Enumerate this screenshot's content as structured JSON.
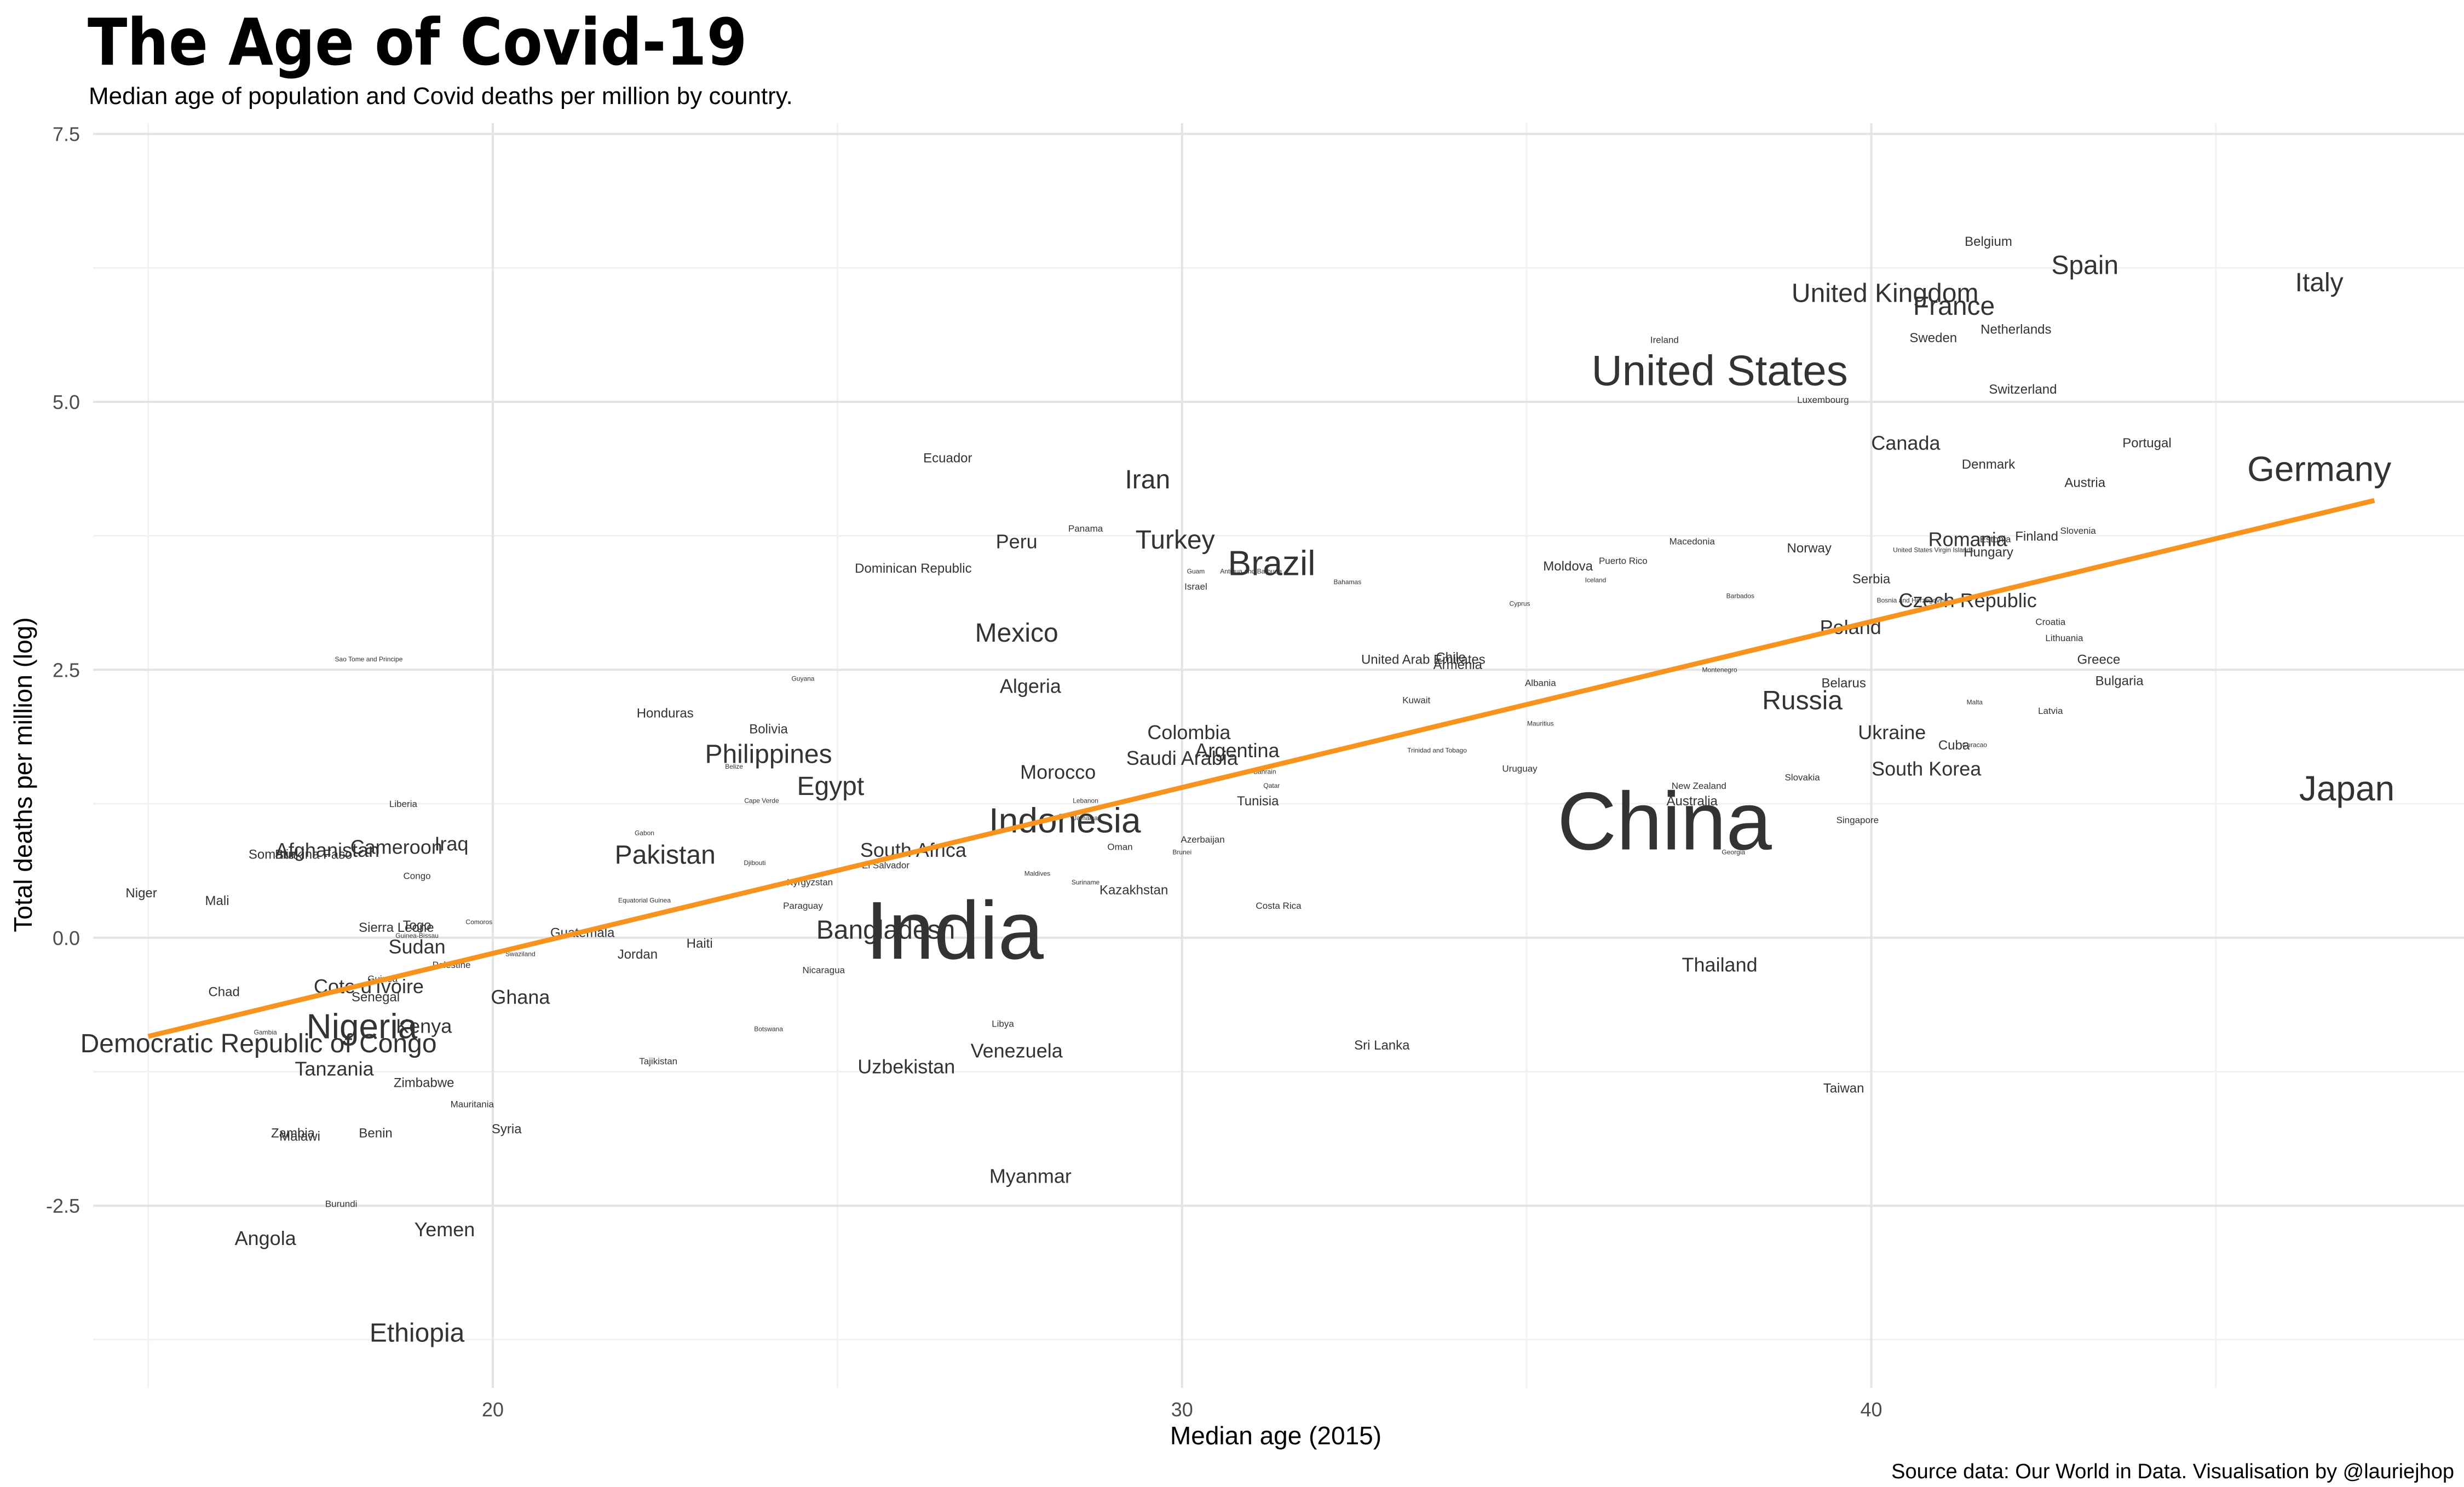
{
  "title": "The Age of Covid-19",
  "subtitle": "Median age of population and Covid deaths per million by country.",
  "caption": "Source data: Our World in Data. Visualisation by @lauriejhop",
  "colors": {
    "trend": "#f7931e",
    "text": "#333333",
    "grid_major": "#e4e4e4",
    "grid_minor": "#f1f1f1",
    "background": "#ffffff"
  },
  "chart_data": {
    "type": "scatter",
    "xlabel": "Median age (2015)",
    "ylabel": "Total deaths per million (log)",
    "xlim": [
      14.2,
      48.6
    ],
    "ylim": [
      -4.2,
      7.6
    ],
    "x_ticks": [
      20,
      30,
      40
    ],
    "x_tick_labels": [
      "20",
      "30",
      "40"
    ],
    "y_ticks": [
      -2.5,
      0,
      2.5,
      5,
      7.5
    ],
    "y_tick_labels": [
      "-2.5",
      "0.0",
      "2.5",
      "5.0",
      "7.5"
    ],
    "grid": true,
    "trend_line": {
      "x": [
        15,
        47.3
      ],
      "y": [
        -0.92,
        4.08
      ]
    },
    "points": [
      {
        "label": "Italy",
        "x": 46.5,
        "y": 6.12,
        "size": 2
      },
      {
        "label": "Japan",
        "x": 46.9,
        "y": 1.4,
        "size": 3
      },
      {
        "label": "Germany",
        "x": 46.5,
        "y": 4.38,
        "size": 3
      },
      {
        "label": "Spain",
        "x": 43.1,
        "y": 6.28,
        "size": 2
      },
      {
        "label": "Belgium",
        "x": 41.7,
        "y": 6.5,
        "size": 0
      },
      {
        "label": "United Kingdom",
        "x": 40.2,
        "y": 6.02,
        "size": 2
      },
      {
        "label": "France",
        "x": 41.2,
        "y": 5.9,
        "size": 2
      },
      {
        "label": "Netherlands",
        "x": 42.1,
        "y": 5.68,
        "size": 0
      },
      {
        "label": "Sweden",
        "x": 40.9,
        "y": 5.6,
        "size": 0
      },
      {
        "label": "Ireland",
        "x": 37.0,
        "y": 5.58,
        "size": -1
      },
      {
        "label": "United States",
        "x": 37.8,
        "y": 5.3,
        "size": 4
      },
      {
        "label": "Switzerland",
        "x": 42.2,
        "y": 5.12,
        "size": 0
      },
      {
        "label": "Luxembourg",
        "x": 39.3,
        "y": 5.02,
        "size": -1
      },
      {
        "label": "Canada",
        "x": 40.5,
        "y": 4.62,
        "size": 1
      },
      {
        "label": "Portugal",
        "x": 44.0,
        "y": 4.62,
        "size": 0
      },
      {
        "label": "Denmark",
        "x": 41.7,
        "y": 4.42,
        "size": 0
      },
      {
        "label": "Austria",
        "x": 43.1,
        "y": 4.25,
        "size": 0
      },
      {
        "label": "Slovenia",
        "x": 43.0,
        "y": 3.8,
        "size": -1
      },
      {
        "label": "Finland",
        "x": 42.4,
        "y": 3.75,
        "size": 0
      },
      {
        "label": "Romania",
        "x": 41.4,
        "y": 3.72,
        "size": 1
      },
      {
        "label": "Estonia",
        "x": 41.8,
        "y": 3.72,
        "size": -1
      },
      {
        "label": "Hungary",
        "x": 41.7,
        "y": 3.6,
        "size": 0
      },
      {
        "label": "United States Virgin Islands",
        "x": 40.9,
        "y": 3.62,
        "size": -2
      },
      {
        "label": "Macedonia",
        "x": 37.4,
        "y": 3.7,
        "size": -1
      },
      {
        "label": "Norway",
        "x": 39.1,
        "y": 3.64,
        "size": 0
      },
      {
        "label": "Moldova",
        "x": 35.6,
        "y": 3.47,
        "size": 0
      },
      {
        "label": "Puerto Rico",
        "x": 36.4,
        "y": 3.52,
        "size": -1
      },
      {
        "label": "Iceland",
        "x": 36.0,
        "y": 3.34,
        "size": -2
      },
      {
        "label": "Serbia",
        "x": 40.0,
        "y": 3.35,
        "size": 0
      },
      {
        "label": "Barbados",
        "x": 38.1,
        "y": 3.19,
        "size": -2
      },
      {
        "label": "Bosnia and Herzegovina",
        "x": 40.6,
        "y": 3.15,
        "size": -2
      },
      {
        "label": "Czech Republic",
        "x": 41.4,
        "y": 3.15,
        "size": 1
      },
      {
        "label": "Cyprus",
        "x": 34.9,
        "y": 3.12,
        "size": -2
      },
      {
        "label": "Croatia",
        "x": 42.6,
        "y": 2.95,
        "size": -1
      },
      {
        "label": "Poland",
        "x": 39.7,
        "y": 2.9,
        "size": 1
      },
      {
        "label": "Lithuania",
        "x": 42.8,
        "y": 2.8,
        "size": -1
      },
      {
        "label": "Greece",
        "x": 43.3,
        "y": 2.6,
        "size": 0
      },
      {
        "label": "Montenegro",
        "x": 37.8,
        "y": 2.5,
        "size": -2
      },
      {
        "label": "Bulgaria",
        "x": 43.6,
        "y": 2.4,
        "size": 0
      },
      {
        "label": "Belarus",
        "x": 39.6,
        "y": 2.38,
        "size": 0
      },
      {
        "label": "Albania",
        "x": 35.2,
        "y": 2.38,
        "size": -1
      },
      {
        "label": "Russia",
        "x": 39.0,
        "y": 2.22,
        "size": 2
      },
      {
        "label": "Malta",
        "x": 41.5,
        "y": 2.2,
        "size": -2
      },
      {
        "label": "Latvia",
        "x": 42.6,
        "y": 2.12,
        "size": -1
      },
      {
        "label": "Mauritius",
        "x": 35.2,
        "y": 2.0,
        "size": -2
      },
      {
        "label": "Ukraine",
        "x": 40.3,
        "y": 1.92,
        "size": 1
      },
      {
        "label": "Cuba",
        "x": 41.2,
        "y": 1.8,
        "size": 0
      },
      {
        "label": "Curacao",
        "x": 41.5,
        "y": 1.8,
        "size": -2
      },
      {
        "label": "South Korea",
        "x": 40.8,
        "y": 1.58,
        "size": 1
      },
      {
        "label": "Slovakia",
        "x": 39.0,
        "y": 1.5,
        "size": -1
      },
      {
        "label": "New Zealand",
        "x": 37.5,
        "y": 1.42,
        "size": -1
      },
      {
        "label": "Australia",
        "x": 37.4,
        "y": 1.28,
        "size": 0
      },
      {
        "label": "China",
        "x": 37.0,
        "y": 1.1,
        "size": 5
      },
      {
        "label": "Singapore",
        "x": 39.8,
        "y": 1.1,
        "size": -1
      },
      {
        "label": "Georgia",
        "x": 38.0,
        "y": 0.8,
        "size": -2
      },
      {
        "label": "Thailand",
        "x": 37.8,
        "y": -0.25,
        "size": 1
      },
      {
        "label": "Taiwan",
        "x": 39.6,
        "y": -1.4,
        "size": 0
      },
      {
        "label": "Sri Lanka",
        "x": 32.9,
        "y": -1.0,
        "size": 0
      },
      {
        "label": "Costa Rica",
        "x": 31.4,
        "y": 0.3,
        "size": -1
      },
      {
        "label": "Kazakhstan",
        "x": 29.3,
        "y": 0.45,
        "size": 0
      },
      {
        "label": "Azerbaijan",
        "x": 30.3,
        "y": 0.92,
        "size": -1
      },
      {
        "label": "Brunei",
        "x": 30.0,
        "y": 0.8,
        "size": -2
      },
      {
        "label": "Oman",
        "x": 29.1,
        "y": 0.85,
        "size": -1
      },
      {
        "label": "Jamaica",
        "x": 28.6,
        "y": 1.12,
        "size": -2
      },
      {
        "label": "Lebanon",
        "x": 28.6,
        "y": 1.28,
        "size": -2
      },
      {
        "label": "Tunisia",
        "x": 31.1,
        "y": 1.28,
        "size": 0
      },
      {
        "label": "Bahrain",
        "x": 31.2,
        "y": 1.55,
        "size": -2
      },
      {
        "label": "Qatar",
        "x": 31.3,
        "y": 1.42,
        "size": -2
      },
      {
        "label": "Argentina",
        "x": 30.8,
        "y": 1.75,
        "size": 1
      },
      {
        "label": "Saudi Arabia",
        "x": 30.0,
        "y": 1.68,
        "size": 1
      },
      {
        "label": "Colombia",
        "x": 30.1,
        "y": 1.92,
        "size": 1
      },
      {
        "label": "Trinidad and Tobago",
        "x": 33.7,
        "y": 1.75,
        "size": -2
      },
      {
        "label": "Uruguay",
        "x": 34.9,
        "y": 1.58,
        "size": -1
      },
      {
        "label": "Kuwait",
        "x": 33.4,
        "y": 2.22,
        "size": -1
      },
      {
        "label": "United Arab Emirates",
        "x": 33.5,
        "y": 2.6,
        "size": 0
      },
      {
        "label": "Chile",
        "x": 33.9,
        "y": 2.62,
        "size": 0
      },
      {
        "label": "Armenia",
        "x": 34.0,
        "y": 2.55,
        "size": 0
      },
      {
        "label": "Bahamas",
        "x": 32.4,
        "y": 3.32,
        "size": -2
      },
      {
        "label": "Brazil",
        "x": 31.3,
        "y": 3.5,
        "size": 3
      },
      {
        "label": "Antigua and Barbuda",
        "x": 31.0,
        "y": 3.42,
        "size": -2
      },
      {
        "label": "Guam",
        "x": 30.2,
        "y": 3.42,
        "size": -2
      },
      {
        "label": "Israel",
        "x": 30.2,
        "y": 3.28,
        "size": -1
      },
      {
        "label": "Turkey",
        "x": 29.9,
        "y": 3.72,
        "size": 2
      },
      {
        "label": "Iran",
        "x": 29.5,
        "y": 4.28,
        "size": 2
      },
      {
        "label": "Panama",
        "x": 28.6,
        "y": 3.82,
        "size": -1
      },
      {
        "label": "Peru",
        "x": 27.6,
        "y": 3.7,
        "size": 1
      },
      {
        "label": "Ecuador",
        "x": 26.6,
        "y": 4.48,
        "size": 0
      },
      {
        "label": "Dominican Republic",
        "x": 26.1,
        "y": 3.45,
        "size": 0
      },
      {
        "label": "Mexico",
        "x": 27.6,
        "y": 2.85,
        "size": 2
      },
      {
        "label": "Algeria",
        "x": 27.8,
        "y": 2.35,
        "size": 1
      },
      {
        "label": "Morocco",
        "x": 28.2,
        "y": 1.55,
        "size": 1
      },
      {
        "label": "Indonesia",
        "x": 28.3,
        "y": 1.1,
        "size": 3
      },
      {
        "label": "Maldives",
        "x": 27.9,
        "y": 0.6,
        "size": -2
      },
      {
        "label": "Suriname",
        "x": 28.6,
        "y": 0.52,
        "size": -2
      },
      {
        "label": "South Africa",
        "x": 26.1,
        "y": 0.82,
        "size": 1
      },
      {
        "label": "El Salvador",
        "x": 25.7,
        "y": 0.68,
        "size": -1
      },
      {
        "label": "Kyrgyzstan",
        "x": 24.6,
        "y": 0.52,
        "size": -1
      },
      {
        "label": "Paraguay",
        "x": 24.5,
        "y": 0.3,
        "size": -1
      },
      {
        "label": "Bangladesh",
        "x": 25.7,
        "y": 0.08,
        "size": 2
      },
      {
        "label": "India",
        "x": 26.7,
        "y": 0.08,
        "size": 5
      },
      {
        "label": "Nicaragua",
        "x": 24.8,
        "y": -0.3,
        "size": -1
      },
      {
        "label": "Libya",
        "x": 27.4,
        "y": -0.8,
        "size": -1
      },
      {
        "label": "Venezuela",
        "x": 27.6,
        "y": -1.05,
        "size": 1
      },
      {
        "label": "Uzbekistan",
        "x": 26.0,
        "y": -1.2,
        "size": 1
      },
      {
        "label": "Myanmar",
        "x": 27.8,
        "y": -2.22,
        "size": 1
      },
      {
        "label": "Botswana",
        "x": 24.0,
        "y": -0.85,
        "size": -2
      },
      {
        "label": "Guyana",
        "x": 24.5,
        "y": 2.42,
        "size": -2
      },
      {
        "label": "Bolivia",
        "x": 24.0,
        "y": 1.95,
        "size": 0
      },
      {
        "label": "Philippines",
        "x": 24.0,
        "y": 1.72,
        "size": 2
      },
      {
        "label": "Belize",
        "x": 23.5,
        "y": 1.6,
        "size": -2
      },
      {
        "label": "Egypt",
        "x": 24.9,
        "y": 1.42,
        "size": 2
      },
      {
        "label": "Cape Verde",
        "x": 23.9,
        "y": 1.28,
        "size": -2
      },
      {
        "label": "Djibouti",
        "x": 23.8,
        "y": 0.7,
        "size": -2
      },
      {
        "label": "Honduras",
        "x": 22.5,
        "y": 2.1,
        "size": 0
      },
      {
        "label": "Gabon",
        "x": 22.2,
        "y": 0.98,
        "size": -2
      },
      {
        "label": "Pakistan",
        "x": 22.5,
        "y": 0.78,
        "size": 2
      },
      {
        "label": "Equatorial Guinea",
        "x": 22.2,
        "y": 0.35,
        "size": -2
      },
      {
        "label": "Guatemala",
        "x": 21.3,
        "y": 0.05,
        "size": 0
      },
      {
        "label": "Jordan",
        "x": 22.1,
        "y": -0.15,
        "size": 0
      },
      {
        "label": "Haiti",
        "x": 23.0,
        "y": -0.05,
        "size": 0
      },
      {
        "label": "Swaziland",
        "x": 20.4,
        "y": -0.15,
        "size": -2
      },
      {
        "label": "Comoros",
        "x": 19.8,
        "y": 0.15,
        "size": -2
      },
      {
        "label": "Ghana",
        "x": 20.4,
        "y": -0.55,
        "size": 1
      },
      {
        "label": "Tajikistan",
        "x": 22.4,
        "y": -1.15,
        "size": -1
      },
      {
        "label": "Syria",
        "x": 20.2,
        "y": -1.78,
        "size": 0
      },
      {
        "label": "Mauritania",
        "x": 19.7,
        "y": -1.55,
        "size": -1
      },
      {
        "label": "Zimbabwe",
        "x": 19.0,
        "y": -1.35,
        "size": 0
      },
      {
        "label": "Yemen",
        "x": 19.3,
        "y": -2.72,
        "size": 1
      },
      {
        "label": "Ethiopia",
        "x": 18.9,
        "y": -3.68,
        "size": 2
      },
      {
        "label": "Burundi",
        "x": 17.8,
        "y": -2.48,
        "size": -1
      },
      {
        "label": "Angola",
        "x": 16.7,
        "y": -2.8,
        "size": 1
      },
      {
        "label": "Zambia",
        "x": 17.1,
        "y": -1.82,
        "size": 0
      },
      {
        "label": "Malawi",
        "x": 17.2,
        "y": -1.85,
        "size": 0
      },
      {
        "label": "Benin",
        "x": 18.3,
        "y": -1.82,
        "size": 0
      },
      {
        "label": "Tanzania",
        "x": 17.7,
        "y": -1.22,
        "size": 1
      },
      {
        "label": "Gambia",
        "x": 16.7,
        "y": -0.88,
        "size": -2
      },
      {
        "label": "Nigeria",
        "x": 18.1,
        "y": -0.82,
        "size": 3
      },
      {
        "label": "Kenya",
        "x": 19.0,
        "y": -0.82,
        "size": 1
      },
      {
        "label": "Democratic Republic of Congo",
        "x": 16.6,
        "y": -0.98,
        "size": 2
      },
      {
        "label": "Chad",
        "x": 16.1,
        "y": -0.5,
        "size": 0
      },
      {
        "label": "Guinea",
        "x": 18.4,
        "y": -0.38,
        "size": -1
      },
      {
        "label": "Cote d'Ivoire",
        "x": 18.2,
        "y": -0.45,
        "size": 1
      },
      {
        "label": "Senegal",
        "x": 18.3,
        "y": -0.55,
        "size": 0
      },
      {
        "label": "Palestine",
        "x": 19.4,
        "y": -0.25,
        "size": -1
      },
      {
        "label": "Sudan",
        "x": 18.9,
        "y": -0.08,
        "size": 1
      },
      {
        "label": "Togo",
        "x": 18.9,
        "y": 0.12,
        "size": 0
      },
      {
        "label": "Guinea-Bissau",
        "x": 18.9,
        "y": 0.02,
        "size": -2
      },
      {
        "label": "Sierra Leone",
        "x": 18.6,
        "y": 0.1,
        "size": 0
      },
      {
        "label": "Congo",
        "x": 18.9,
        "y": 0.58,
        "size": -1
      },
      {
        "label": "Liberia",
        "x": 18.7,
        "y": 1.25,
        "size": -1
      },
      {
        "label": "Sao Tome and Principe",
        "x": 18.2,
        "y": 2.6,
        "size": -2
      },
      {
        "label": "Cameroon",
        "x": 18.6,
        "y": 0.85,
        "size": 1
      },
      {
        "label": "Iraq",
        "x": 19.4,
        "y": 0.88,
        "size": 1
      },
      {
        "label": "Afghanistan",
        "x": 17.6,
        "y": 0.82,
        "size": 1
      },
      {
        "label": "Burkina Faso",
        "x": 17.4,
        "y": 0.78,
        "size": 0
      },
      {
        "label": "Somalia",
        "x": 16.8,
        "y": 0.78,
        "size": 0
      },
      {
        "label": "Mali",
        "x": 16.0,
        "y": 0.35,
        "size": 0
      },
      {
        "label": "Niger",
        "x": 14.9,
        "y": 0.42,
        "size": 0
      }
    ]
  }
}
